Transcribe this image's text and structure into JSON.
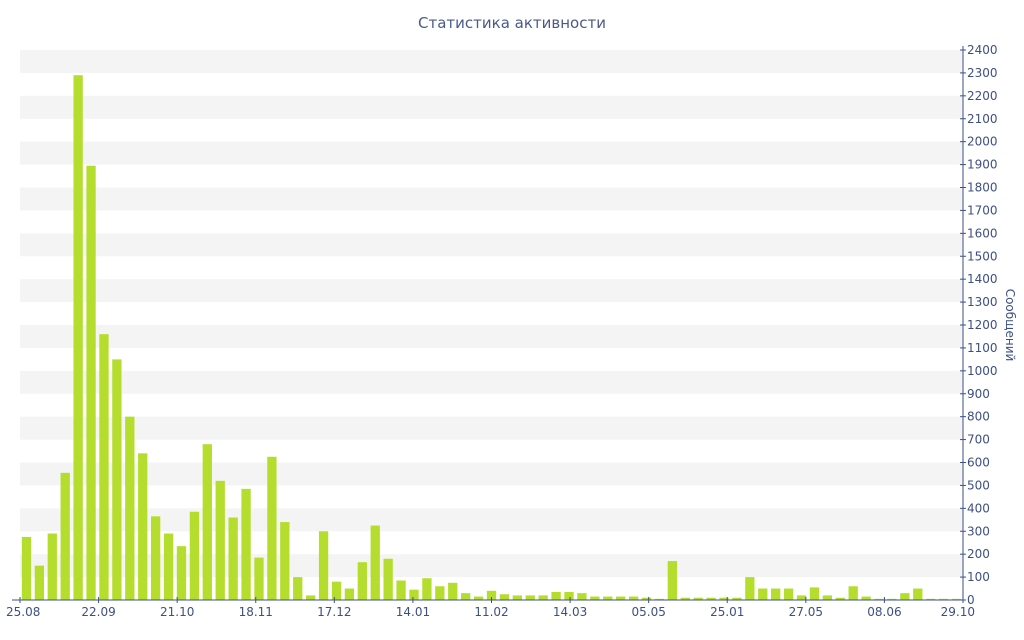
{
  "chart_data": {
    "type": "bar",
    "title": "Статистика активности",
    "ylabel": "Сообщений",
    "xlabel": "",
    "ylim": [
      0,
      2400
    ],
    "y_ticks": [
      0,
      100,
      200,
      300,
      400,
      500,
      600,
      700,
      800,
      900,
      1000,
      1100,
      1200,
      1300,
      1400,
      1500,
      1600,
      1700,
      1800,
      1900,
      2000,
      2100,
      2200,
      2300,
      2400
    ],
    "x_tick_labels": [
      "25.08",
      "22.09",
      "21.10",
      "18.11",
      "17.12",
      "14.01",
      "11.02",
      "14.03",
      "05.05",
      "25.01",
      "27.05",
      "08.06",
      "29.10"
    ],
    "y_axis_position": "right",
    "grid": "horizontal alternating bands",
    "colors": {
      "bar": "#b5dd2d",
      "band": "#f4f4f4",
      "axis": "#3e4f85",
      "text": "#3e4f85"
    },
    "values": [
      275,
      150,
      290,
      555,
      2290,
      1895,
      1160,
      1050,
      800,
      640,
      365,
      290,
      235,
      385,
      680,
      520,
      360,
      485,
      185,
      625,
      340,
      100,
      20,
      300,
      80,
      50,
      165,
      325,
      180,
      85,
      45,
      95,
      60,
      75,
      30,
      15,
      40,
      25,
      20,
      20,
      20,
      35,
      35,
      30,
      15,
      15,
      15,
      15,
      10,
      5,
      170,
      10,
      10,
      10,
      10,
      10,
      100,
      50,
      50,
      50,
      20,
      55,
      20,
      10,
      60,
      15,
      5,
      5,
      30,
      50,
      5,
      5,
      5
    ]
  }
}
